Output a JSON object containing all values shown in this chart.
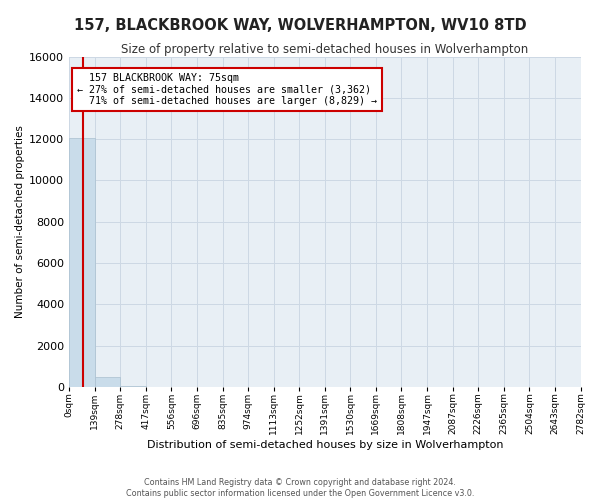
{
  "title": "157, BLACKBROOK WAY, WOLVERHAMPTON, WV10 8TD",
  "subtitle": "Size of property relative to semi-detached houses in Wolverhampton",
  "xlabel": "Distribution of semi-detached houses by size in Wolverhampton",
  "ylabel": "Number of semi-detached properties",
  "property_label": "157 BLACKBROOK WAY: 75sqm",
  "pct_smaller": 27,
  "pct_larger": 71,
  "n_smaller": 3362,
  "n_larger": 8829,
  "bin_labels": [
    "0sqm",
    "139sqm",
    "278sqm",
    "417sqm",
    "556sqm",
    "696sqm",
    "835sqm",
    "974sqm",
    "1113sqm",
    "1252sqm",
    "1391sqm",
    "1530sqm",
    "1669sqm",
    "1808sqm",
    "1947sqm",
    "2087sqm",
    "2226sqm",
    "2365sqm",
    "2504sqm",
    "2643sqm",
    "2782sqm"
  ],
  "bin_edges": [
    0,
    139,
    278,
    417,
    556,
    696,
    835,
    974,
    1113,
    1252,
    1391,
    1530,
    1669,
    1808,
    1947,
    2087,
    2226,
    2365,
    2504,
    2643,
    2782
  ],
  "bar_heights": [
    12050,
    490,
    30,
    10,
    5,
    3,
    2,
    2,
    1,
    1,
    1,
    1,
    0,
    0,
    0,
    0,
    0,
    0,
    0,
    0
  ],
  "bar_color": "#c9dcea",
  "bar_edge_color": "#aabfcf",
  "vline_x": 75,
  "vline_color": "#cc0000",
  "annotation_box_color": "#cc0000",
  "ylim": [
    0,
    16000
  ],
  "yticks": [
    0,
    2000,
    4000,
    6000,
    8000,
    10000,
    12000,
    14000,
    16000
  ],
  "grid_color": "#cdd8e4",
  "bg_color": "#e8eff5",
  "footer_line1": "Contains HM Land Registry data © Crown copyright and database right 2024.",
  "footer_line2": "Contains public sector information licensed under the Open Government Licence v3.0."
}
